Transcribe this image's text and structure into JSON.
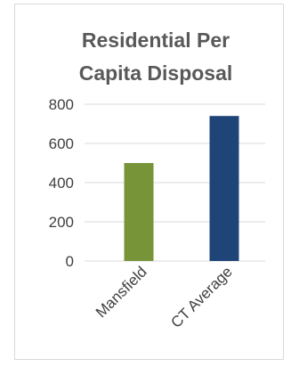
{
  "chart_data": {
    "type": "bar",
    "title_lines": [
      "Residential Per",
      "Capita Disposal"
    ],
    "categories": [
      "Mansfield",
      "CT Average"
    ],
    "values": [
      500,
      740
    ],
    "colors": [
      "#779538",
      "#1f4478"
    ],
    "ylim": [
      0,
      800
    ],
    "yticks": [
      0,
      200,
      400,
      600,
      800
    ],
    "tick_labels": [
      "0",
      "200",
      "400",
      "600",
      "800"
    ],
    "grid": true,
    "gridline_color": "#d9d9d9",
    "legend": "none",
    "xlabel": "",
    "ylabel": ""
  }
}
